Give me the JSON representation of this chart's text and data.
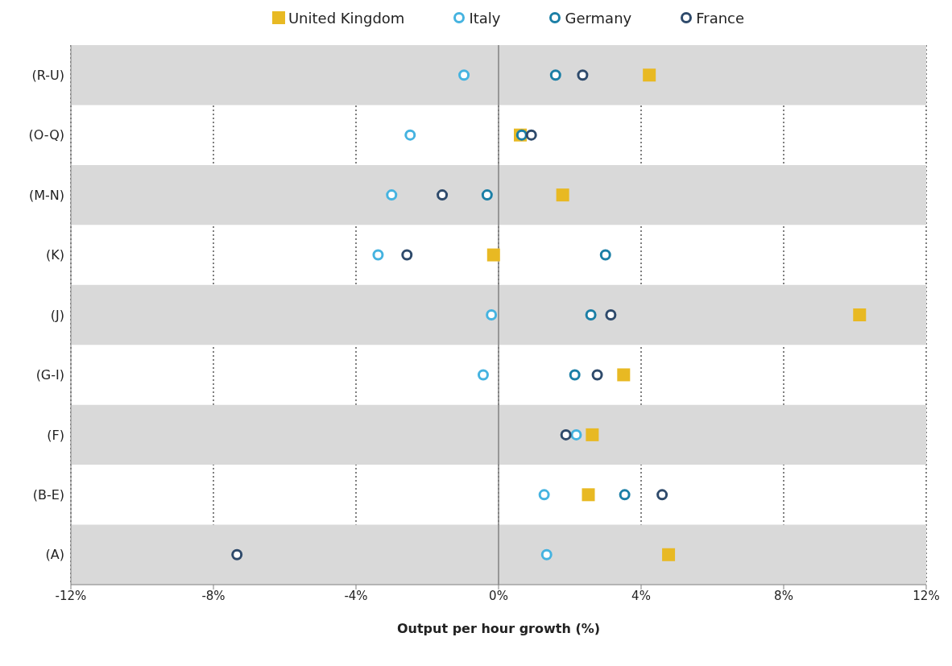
{
  "chart_data": {
    "type": "scatter",
    "xlabel": "Output per hour growth (%)",
    "categories": [
      "(R-U)",
      "(O-Q)",
      "(M-N)",
      "(K)",
      "(J)",
      "(G-I)",
      "(F)",
      "(B-E)",
      "(A)"
    ],
    "series": [
      {
        "name": "United Kingdom",
        "color": "#e8b923",
        "marker": "square",
        "values": [
          4.23,
          0.61,
          1.8,
          -0.14,
          10.13,
          3.51,
          2.63,
          2.52,
          4.77
        ]
      },
      {
        "name": "Italy",
        "color": "#45b3e0",
        "marker": "circle",
        "values": [
          -0.97,
          -2.48,
          -3.0,
          -3.38,
          -0.2,
          -0.43,
          2.18,
          1.28,
          1.35
        ]
      },
      {
        "name": "Germany",
        "color": "#1b7fa6",
        "marker": "circle",
        "values": [
          1.6,
          0.65,
          -0.32,
          3.0,
          2.59,
          2.14,
          null,
          3.54,
          null
        ]
      },
      {
        "name": "France",
        "color": "#2e4a6b",
        "marker": "circle",
        "values": [
          2.36,
          0.92,
          -1.58,
          -2.57,
          3.15,
          2.77,
          1.89,
          4.59,
          -7.34
        ]
      }
    ],
    "xlim": [
      -12,
      12
    ],
    "xticks": [
      {
        "value": -12,
        "label": "-12%"
      },
      {
        "value": -8,
        "label": "-8%"
      },
      {
        "value": -4,
        "label": "-4%"
      },
      {
        "value": 0,
        "label": "0%"
      },
      {
        "value": 4,
        "label": "4%"
      },
      {
        "value": 8,
        "label": "8%"
      },
      {
        "value": 12,
        "label": "12%"
      }
    ],
    "orientation": "horizontal",
    "grid": "x",
    "line_style": "dotted",
    "legend": "top",
    "ref_lines": [
      {
        "axis": "x",
        "value": 0,
        "color": "#808080"
      }
    ],
    "bands": [
      {
        "axis": "y",
        "from": "(R-U)",
        "to": "(R-U)",
        "color": "#d9d9d9"
      },
      {
        "axis": "y",
        "from": "(M-N)",
        "to": "(M-N)",
        "color": "#d9d9d9"
      },
      {
        "axis": "y",
        "from": "(J)",
        "to": "(J)",
        "color": "#d9d9d9"
      },
      {
        "axis": "y",
        "from": "(F)",
        "to": "(F)",
        "color": "#d9d9d9"
      },
      {
        "axis": "y",
        "from": "(A)",
        "to": "(A)",
        "color": "#d9d9d9"
      }
    ]
  }
}
